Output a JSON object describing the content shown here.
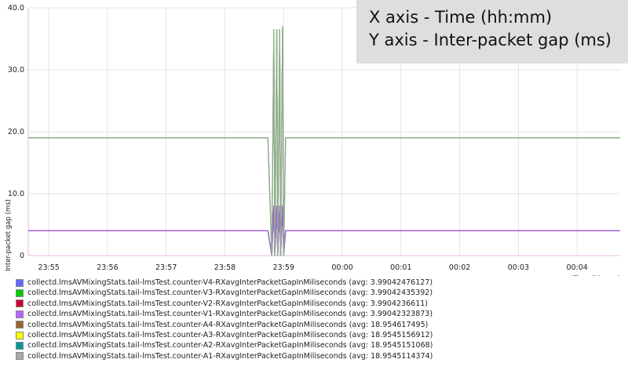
{
  "overlay": {
    "x_line": "X axis - Time (hh:mm)",
    "y_line": "Y axis - Inter-packet gap (ms)"
  },
  "chart_data": {
    "type": "line",
    "xlabel": "Time (hh:mm)",
    "ylabel": "Inter-packet gap (ms)",
    "ylim": [
      0,
      40
    ],
    "yticks": [
      0,
      10,
      20,
      30,
      40
    ],
    "ytick_labels": [
      "0",
      "10.0",
      "20.0",
      "30.0",
      "40.0"
    ],
    "xlim": [
      "23:54:39",
      "23:04:39+"
    ],
    "xlim_labels": [
      "23:54:39",
      "00:04:44"
    ],
    "xticks": [
      "23:55",
      "23:56",
      "23:57",
      "23:58",
      "23:59",
      "00:00",
      "00:01",
      "00:02",
      "00:03",
      "00:04"
    ],
    "x": [
      "23:54:39",
      "23:58:44",
      "23:58:48",
      "23:58:50",
      "23:58:51",
      "23:58:53",
      "23:58:54",
      "23:58:56",
      "23:58:57",
      "23:58:59",
      "23:59:00",
      "23:59:02",
      "23:59:04",
      "00:04:44"
    ],
    "grid": true,
    "legend_position": "bottom",
    "series": [
      {
        "name": "collectd.lmsAVMixingStats.tail-lmsTest.counter-V4-RXavgInterPacketGapInMiliseconds (avg: 3.99042476127)",
        "color": "#6666ff",
        "values": [
          4,
          4,
          0,
          8,
          0,
          8,
          0,
          8,
          0,
          8,
          0,
          4,
          4,
          4
        ]
      },
      {
        "name": "collectd.lmsAVMixingStats.tail-lmsTest.counter-V3-RXavgInterPacketGapInMiliseconds (avg: 3.99042435392)",
        "color": "#00cc00",
        "values": [
          4,
          4,
          0,
          8,
          0,
          8,
          0,
          8,
          0,
          8,
          0,
          4,
          4,
          4
        ]
      },
      {
        "name": "collectd.lmsAVMixingStats.tail-lmsTest.counter-V2-RXavgInterPacketGapInMiliseconds (avg: 3.9904236611)",
        "color": "#cc0033",
        "values": [
          4,
          4,
          0,
          8,
          0,
          8,
          0,
          8,
          0,
          8,
          0,
          4,
          4,
          4
        ]
      },
      {
        "name": "collectd.lmsAVMixingStats.tail-lmsTest.counter-V1-RXavgInterPacketGapInMiliseconds (avg: 3.99042323873)",
        "color": "#b366ff",
        "values": [
          4,
          4,
          0,
          8,
          0,
          8,
          0,
          8,
          0,
          8,
          0,
          4,
          4,
          4
        ]
      },
      {
        "name": "collectd.lmsAVMixingStats.tail-lmsTest.counter-A4-RXavgInterPacketGapInMiliseconds (avg: 18.954617495)",
        "color": "#996633",
        "values": [
          19,
          19,
          0,
          36.5,
          0,
          36.5,
          0,
          36.5,
          0,
          37,
          0,
          19,
          19,
          19
        ]
      },
      {
        "name": "collectd.lmsAVMixingStats.tail-lmsTest.counter-A3-RXavgInterPacketGapInMiliseconds (avg: 18.9545156912)",
        "color": "#ffff00",
        "values": [
          19,
          19,
          0,
          36.5,
          0,
          36.5,
          0,
          36.5,
          0,
          37,
          0,
          19,
          19,
          19
        ]
      },
      {
        "name": "collectd.lmsAVMixingStats.tail-lmsTest.counter-A2-RXavgInterPacketGapInMiliseconds (avg: 18.9545151068)",
        "color": "#009999",
        "values": [
          19,
          19,
          0,
          36.5,
          0,
          36.5,
          0,
          36.5,
          0,
          37,
          0,
          19,
          19,
          19
        ]
      },
      {
        "name": "collectd.lmsAVMixingStats.tail-lmsTest.counter-A1-RXavgInterPacketGapInMiliseconds (avg: 18.9545114374)",
        "color": "#aaaaaa",
        "values": [
          19,
          19,
          0,
          36.5,
          0,
          36.5,
          0,
          36.5,
          0,
          37,
          0,
          19,
          19,
          19
        ]
      }
    ]
  }
}
